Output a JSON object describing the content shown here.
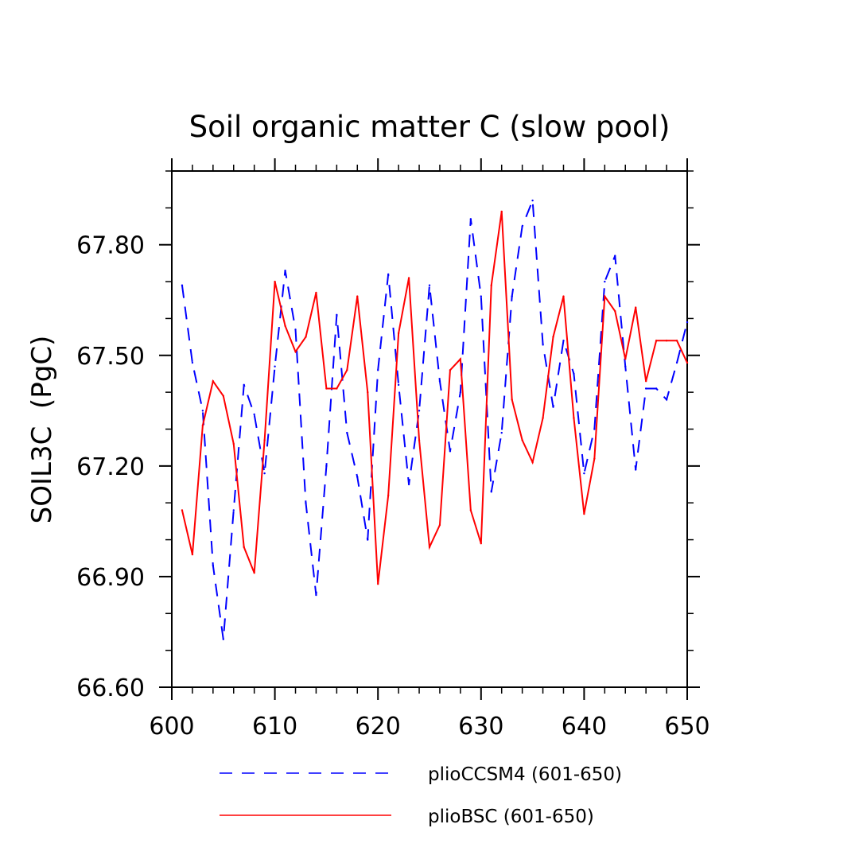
{
  "chart_data": {
    "type": "line",
    "title": "Soil organic matter C (slow pool)",
    "ylabel": "SOIL3C  (PgC)",
    "xlabel": "",
    "xlim": [
      600,
      650
    ],
    "ylim": [
      66.6,
      68.0
    ],
    "xticks": [
      600,
      610,
      620,
      630,
      640,
      650
    ],
    "xtick_labels": [
      "600",
      "610",
      "620",
      "630",
      "640",
      "650"
    ],
    "yticks": [
      66.6,
      66.9,
      67.2,
      67.5,
      67.8
    ],
    "ytick_labels": [
      "66.60",
      "66.90",
      "67.20",
      "67.50",
      "67.80"
    ],
    "grid": false,
    "legend_position": "bottom",
    "x": [
      601,
      602,
      603,
      604,
      605,
      606,
      607,
      608,
      609,
      610,
      611,
      612,
      613,
      614,
      615,
      616,
      617,
      618,
      619,
      620,
      621,
      622,
      623,
      624,
      625,
      626,
      627,
      628,
      629,
      630,
      631,
      632,
      633,
      634,
      635,
      636,
      637,
      638,
      639,
      640,
      641,
      642,
      643,
      644,
      645,
      646,
      647,
      648,
      649,
      650
    ],
    "series": [
      {
        "name": "plioCCSM4 (601-650)",
        "color": "#0000ff",
        "dash": "dashed",
        "values": [
          67.69,
          67.48,
          67.35,
          66.93,
          66.73,
          67.08,
          67.42,
          67.34,
          67.18,
          67.47,
          67.73,
          67.57,
          67.1,
          66.85,
          67.2,
          67.61,
          67.29,
          67.17,
          67.0,
          67.46,
          67.72,
          67.42,
          67.15,
          67.35,
          67.69,
          67.43,
          67.24,
          67.4,
          67.87,
          67.66,
          67.13,
          67.29,
          67.66,
          67.85,
          67.92,
          67.53,
          67.36,
          67.54,
          67.45,
          67.18,
          67.3,
          67.7,
          67.77,
          67.47,
          67.19,
          67.41,
          67.41,
          67.38,
          67.48,
          67.59
        ]
      },
      {
        "name": "plioBSC (601-650)",
        "color": "#ff0000",
        "dash": "solid",
        "values": [
          67.08,
          66.96,
          67.31,
          67.43,
          67.39,
          67.26,
          66.98,
          66.91,
          67.27,
          67.7,
          67.58,
          67.51,
          67.55,
          67.67,
          67.41,
          67.41,
          67.46,
          67.66,
          67.4,
          66.88,
          67.12,
          67.56,
          67.71,
          67.27,
          66.98,
          67.04,
          67.46,
          67.49,
          67.08,
          66.99,
          67.69,
          67.89,
          67.38,
          67.27,
          67.21,
          67.33,
          67.55,
          67.66,
          67.33,
          67.07,
          67.22,
          67.66,
          67.62,
          67.49,
          67.63,
          67.43,
          67.54,
          67.54,
          67.54,
          67.48
        ]
      }
    ]
  }
}
